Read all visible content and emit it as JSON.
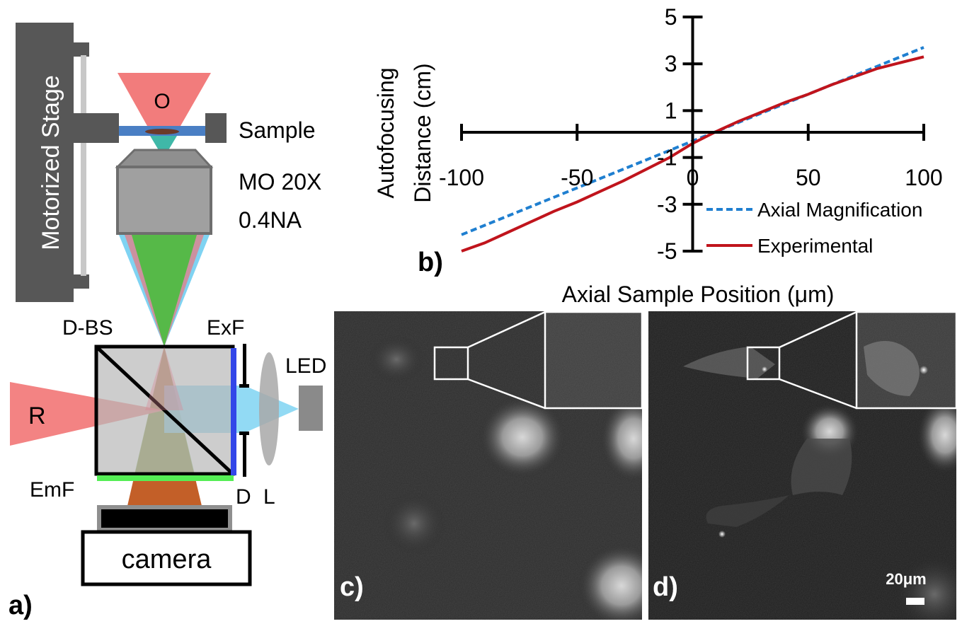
{
  "panel_a": {
    "panel_label": "a)",
    "stage_label": "Motorized Stage",
    "objective_top_label": "O",
    "sample_label": "Sample",
    "mo_line1": "MO 20X",
    "mo_line2": "0.4NA",
    "dbs_label": "D-BS",
    "exf_label": "ExF",
    "led_label": "LED",
    "r_label": "R",
    "emf_label": "EmF",
    "d_label": "D",
    "l_label": "L",
    "camera_label": "camera",
    "colors": {
      "red_beam": "#f27c7c",
      "blue_beam": "#7fd3f2",
      "green_beam": "#56b948",
      "orange_beam": "#c0561c",
      "stage": "#575757",
      "blue_filter": "#3346e8",
      "green_filter": "#55ee55"
    }
  },
  "panel_b": {
    "panel_label": "b)"
  },
  "panel_c": {
    "panel_label": "c)"
  },
  "panel_d": {
    "panel_label": "d)",
    "scale_bar_label": "20μm"
  },
  "chart_data": {
    "type": "line",
    "xlabel": "Axial Sample Position (μm)",
    "ylabel_line1": "Autofocusing",
    "ylabel_line2": "Distance (cm)",
    "xlim": [
      -100,
      100
    ],
    "ylim": [
      -5,
      5
    ],
    "x_ticks": [
      -100,
      -50,
      0,
      50,
      100
    ],
    "x_tick_labels": [
      "-100",
      "-50",
      "0",
      "50",
      "100"
    ],
    "y_ticks": [
      -5,
      -3,
      -1,
      1,
      3,
      5
    ],
    "y_tick_labels": [
      "-5",
      "-3",
      "-1",
      "1",
      "3",
      "5"
    ],
    "legend_position": "bottom-right",
    "series": [
      {
        "name": "Axial Magnification",
        "color": "#1f7fd0",
        "style": "dashed",
        "x": [
          -100,
          -75,
          -50,
          -25,
          0,
          25,
          50,
          75,
          100
        ],
        "y": [
          -4.3,
          -3.3,
          -2.3,
          -1.3,
          -0.3,
          0.7,
          1.7,
          2.7,
          3.7
        ]
      },
      {
        "name": "Experimental",
        "color": "#c0141c",
        "style": "solid",
        "x": [
          -100,
          -90,
          -80,
          -70,
          -60,
          -50,
          -40,
          -30,
          -20,
          -10,
          0,
          10,
          20,
          30,
          40,
          50,
          60,
          70,
          80,
          90,
          100
        ],
        "y": [
          -5.0,
          -4.65,
          -4.2,
          -3.75,
          -3.3,
          -2.9,
          -2.45,
          -2.0,
          -1.5,
          -1.0,
          -0.4,
          0.1,
          0.55,
          0.95,
          1.35,
          1.7,
          2.1,
          2.45,
          2.8,
          3.05,
          3.3
        ]
      }
    ]
  }
}
